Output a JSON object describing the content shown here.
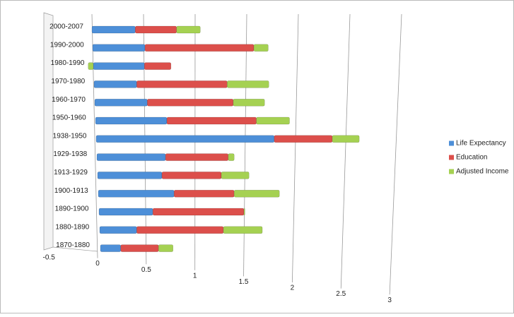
{
  "chart_data": {
    "type": "bar3d",
    "categories": [
      "1870-1880",
      "1880-1890",
      "1890-1900",
      "1900-1913",
      "1913-1929",
      "1929-1938",
      "1938-1950",
      "1950-1960",
      "1960-1970",
      "1970-1980",
      "1980-1990",
      "1990-2000",
      "2000-2007"
    ],
    "series": [
      {
        "name": "Life Expectancy",
        "color": "#4d8fd8",
        "values": [
          0.21,
          0.38,
          0.55,
          0.77,
          0.65,
          0.69,
          1.78,
          0.71,
          0.52,
          0.42,
          0.5,
          0.51,
          0.42
        ]
      },
      {
        "name": "Education",
        "color": "#dc4f4b",
        "values": [
          0.39,
          0.89,
          0.93,
          0.61,
          0.6,
          0.63,
          0.58,
          0.89,
          0.85,
          0.89,
          0.26,
          1.06,
          0.4
        ]
      },
      {
        "name": "Adjusted Income",
        "color": "#a5d152",
        "values": [
          0.15,
          0.4,
          0.01,
          0.46,
          0.28,
          0.06,
          0.27,
          0.33,
          0.31,
          0.41,
          -0.05,
          0.14,
          0.23
        ]
      }
    ],
    "xlim": [
      -0.5,
      3
    ],
    "xticks": [
      -0.5,
      0,
      0.5,
      1,
      1.5,
      2,
      2.5,
      3
    ],
    "grid": true,
    "legend": "right"
  }
}
